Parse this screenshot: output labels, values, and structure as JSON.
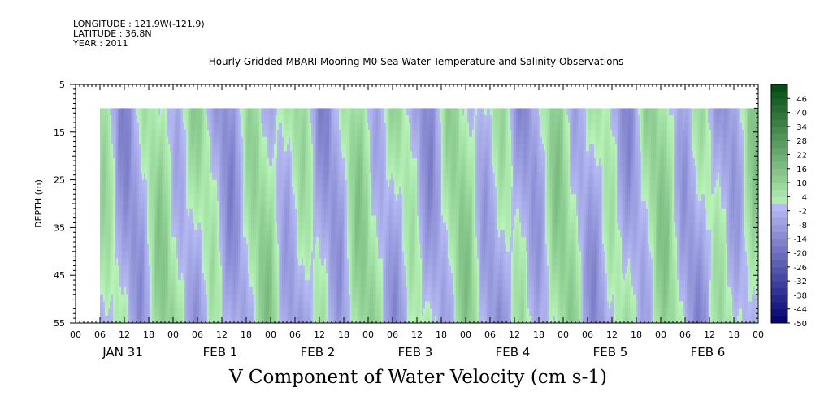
{
  "header": {
    "longitude": "LONGITUDE : 121.9W(-121.9)",
    "latitude": "LATITUDE : 36.8N",
    "year": "YEAR : 2011"
  },
  "chart_data": {
    "type": "heatmap",
    "title": "Hourly Gridded MBARI Mooring M0 Sea Water Temperature and Salinity Observations",
    "variable_label": "V Component of Water Velocity (cm s-1)",
    "ylabel": "DEPTH (m)",
    "ylim": [
      5,
      55
    ],
    "y_inverted": true,
    "y_ticks": [
      5,
      15,
      25,
      35,
      45,
      55
    ],
    "data_depth_range": [
      10,
      55
    ],
    "x_hour_ticks": [
      "00",
      "06",
      "12",
      "18",
      "00",
      "06",
      "12",
      "18",
      "00",
      "06",
      "12",
      "18",
      "00",
      "06",
      "12",
      "18",
      "00",
      "06",
      "12",
      "18",
      "00",
      "06",
      "12",
      "18",
      "00",
      "06",
      "12",
      "18",
      "00"
    ],
    "x_days": [
      "JAN 31",
      "FEB 1",
      "FEB 2",
      "FEB 3",
      "FEB 4",
      "FEB 5",
      "FEB 6"
    ],
    "data_start_hour": 6,
    "colorbar": {
      "labels": [
        "46",
        "40",
        "34",
        "28",
        "22",
        "16",
        "10",
        "4",
        "-2",
        "-8",
        "-14",
        "-20",
        "-26",
        "-32",
        "-38",
        "-44",
        "-50"
      ],
      "min": -50,
      "max": 52,
      "step": 6
    },
    "colors": {
      "neg_light": "#b8bcf4",
      "neg_dark": "#000070",
      "pos_light": "#b8f4b8",
      "pos_dark": "#004a10"
    }
  }
}
